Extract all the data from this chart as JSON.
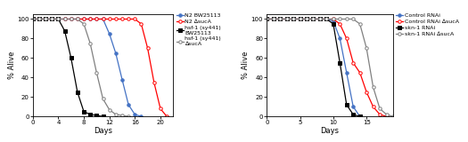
{
  "left": {
    "series": [
      {
        "label": "N2 BW25113",
        "color": "#4472C4",
        "marker": "o",
        "fillstyle": "full",
        "x": [
          0,
          1,
          2,
          3,
          4,
          5,
          6,
          7,
          8,
          9,
          10,
          11,
          12,
          13,
          14,
          15,
          16,
          17
        ],
        "y": [
          100,
          100,
          100,
          100,
          100,
          100,
          100,
          100,
          100,
          100,
          100,
          100,
          85,
          65,
          38,
          12,
          2,
          0
        ]
      },
      {
        "label": "N2 ∆sucA",
        "color": "#FF0000",
        "marker": "o",
        "fillstyle": "none",
        "x": [
          0,
          1,
          2,
          3,
          4,
          5,
          6,
          7,
          8,
          9,
          10,
          11,
          12,
          13,
          14,
          15,
          16,
          17,
          18,
          19,
          20,
          21
        ],
        "y": [
          100,
          100,
          100,
          100,
          100,
          100,
          100,
          100,
          100,
          100,
          100,
          100,
          100,
          100,
          100,
          100,
          100,
          95,
          70,
          35,
          8,
          0
        ]
      },
      {
        "label": "hsf-1 (sy441)\nBW25113",
        "color": "#000000",
        "marker": "s",
        "fillstyle": "full",
        "x": [
          0,
          1,
          2,
          3,
          4,
          5,
          6,
          7,
          8,
          9,
          10,
          11
        ],
        "y": [
          100,
          100,
          100,
          100,
          100,
          88,
          60,
          25,
          5,
          2,
          1,
          0
        ]
      },
      {
        "label": "hsf-1 (sy441)\n∆sucA",
        "color": "#808080",
        "marker": "o",
        "fillstyle": "none",
        "x": [
          0,
          1,
          2,
          3,
          4,
          5,
          6,
          7,
          8,
          9,
          10,
          11,
          12,
          13,
          14,
          15
        ],
        "y": [
          100,
          100,
          100,
          100,
          100,
          100,
          100,
          100,
          95,
          75,
          45,
          18,
          7,
          2,
          1,
          0
        ]
      }
    ],
    "xlabel": "Days",
    "ylabel": "% Alive",
    "xlim": [
      0,
      22
    ],
    "ylim": [
      0,
      105
    ],
    "xticks": [
      0,
      4,
      8,
      12,
      16,
      20
    ],
    "yticks": [
      0,
      20,
      40,
      60,
      80,
      100
    ]
  },
  "right": {
    "series": [
      {
        "label": "Control RNAi",
        "color": "#4472C4",
        "marker": "o",
        "fillstyle": "full",
        "x": [
          0,
          1,
          2,
          3,
          4,
          5,
          6,
          7,
          8,
          9,
          10,
          11,
          12,
          13,
          14
        ],
        "y": [
          100,
          100,
          100,
          100,
          100,
          100,
          100,
          100,
          100,
          100,
          98,
          80,
          45,
          10,
          0
        ]
      },
      {
        "label": "Control RNAi ∆sucA",
        "color": "#FF0000",
        "marker": "o",
        "fillstyle": "none",
        "x": [
          0,
          1,
          2,
          3,
          4,
          5,
          6,
          7,
          8,
          9,
          10,
          11,
          12,
          13,
          14,
          15,
          16,
          17,
          18
        ],
        "y": [
          100,
          100,
          100,
          100,
          100,
          100,
          100,
          100,
          100,
          100,
          100,
          95,
          80,
          55,
          45,
          25,
          10,
          2,
          0
        ]
      },
      {
        "label": "skn-1 RNAi",
        "color": "#000000",
        "marker": "s",
        "fillstyle": "full",
        "x": [
          0,
          1,
          2,
          3,
          4,
          5,
          6,
          7,
          8,
          9,
          10,
          11,
          12,
          13,
          14
        ],
        "y": [
          100,
          100,
          100,
          100,
          100,
          100,
          100,
          100,
          100,
          100,
          95,
          55,
          12,
          2,
          0
        ]
      },
      {
        "label": "skn-1 RNAi ∆sucA",
        "color": "#808080",
        "marker": "o",
        "fillstyle": "none",
        "x": [
          0,
          1,
          2,
          3,
          4,
          5,
          6,
          7,
          8,
          9,
          10,
          11,
          12,
          13,
          14,
          15,
          16,
          17,
          18,
          19
        ],
        "y": [
          100,
          100,
          100,
          100,
          100,
          100,
          100,
          100,
          100,
          100,
          100,
          100,
          100,
          100,
          95,
          70,
          30,
          8,
          2,
          0
        ]
      }
    ],
    "xlabel": "Days",
    "ylabel": "% Alive",
    "xlim": [
      0,
      19
    ],
    "ylim": [
      0,
      105
    ],
    "xticks": [
      0,
      5,
      10,
      15
    ],
    "yticks": [
      0,
      20,
      40,
      60,
      80,
      100
    ]
  }
}
